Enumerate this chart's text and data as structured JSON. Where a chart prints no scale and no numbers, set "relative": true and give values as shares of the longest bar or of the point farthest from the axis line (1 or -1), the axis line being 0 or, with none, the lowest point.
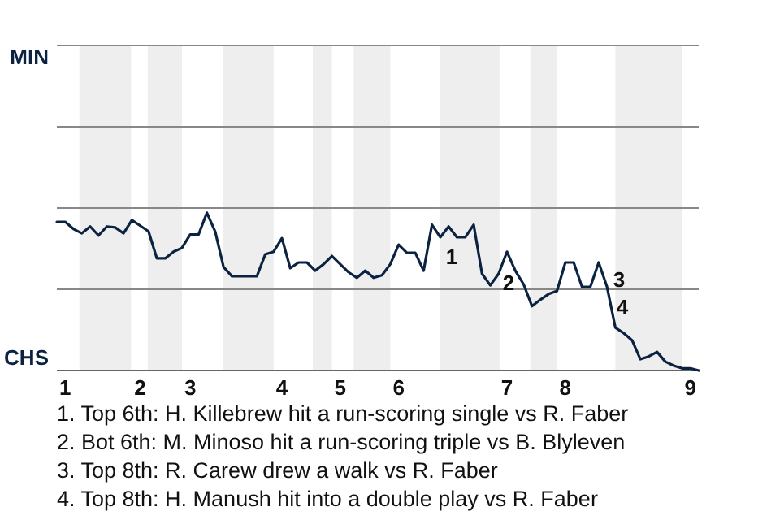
{
  "chart_data": {
    "type": "line",
    "relative": true,
    "marker": "none",
    "line_style": "solid",
    "ref_lines": [
      {
        "axis": "y",
        "value": 0.515,
        "label": null,
        "color": "#888888"
      },
      {
        "axis": "y",
        "value": 1.03,
        "label": null,
        "color": "#888888"
      },
      {
        "axis": "y",
        "value": 1.545,
        "label": null,
        "color": "#888888"
      },
      {
        "axis": "y",
        "value": 2.06,
        "label": null,
        "color": "#888888"
      }
    ],
    "categories": [
      null,
      "1",
      null,
      null,
      null,
      null,
      null,
      null,
      null,
      null,
      "2",
      null,
      null,
      null,
      null,
      null,
      "3",
      null,
      null,
      null,
      null,
      null,
      null,
      null,
      null,
      null,
      null,
      "4",
      null,
      null,
      null,
      null,
      null,
      null,
      "5",
      null,
      null,
      null,
      null,
      null,
      null,
      "6",
      null,
      null,
      null,
      null,
      null,
      null,
      null,
      null,
      null,
      null,
      null,
      null,
      "7",
      null,
      null,
      null,
      null,
      null,
      null,
      "8",
      null,
      null,
      null,
      null,
      null,
      null,
      null,
      null,
      null,
      null,
      null,
      null,
      null,
      null,
      "9",
      null
    ],
    "series": [
      {
        "color": "#0b2341",
        "values": [
          0.942,
          0.942,
          0.897,
          0.87,
          0.913,
          0.856,
          0.913,
          0.907,
          0.87,
          0.953,
          0.918,
          0.882,
          0.711,
          0.711,
          0.753,
          0.777,
          0.862,
          0.862,
          1,
          0.88,
          0.656,
          0.598,
          0.598,
          0.598,
          0.598,
          0.736,
          0.753,
          0.839,
          0.649,
          0.685,
          0.685,
          0.633,
          0.674,
          0.726,
          0.674,
          0.623,
          0.588,
          0.633,
          0.588,
          0.604,
          0.674,
          0.798,
          0.746,
          0.746,
          0.633,
          0.924,
          0.845,
          0.913,
          0.845,
          0.845,
          0.924,
          0.614,
          0.54,
          0.614,
          0.753,
          0.633,
          0.546,
          0.408,
          0.449,
          0.485,
          0.505,
          0.685,
          0.685,
          0.53,
          0.53,
          0.685,
          0.53,
          0.272,
          0.237,
          0.192,
          0.072,
          0.089,
          0.118,
          0.056,
          0.031,
          0.014,
          0.014,
          0
        ]
      }
    ],
    "annotations": [
      "MIN",
      "CHS",
      "1",
      "2",
      "3",
      "4",
      "1. Top 6th: H. Killebrew hit a run-scoring single vs R. Faber",
      "2. Bot 6th: M. Minoso hit a run-scoring triple vs B. Blyleven",
      "3. Top 8th: R. Carew drew a walk vs R. Faber",
      "4. Top 8th: H. Manush hit into a double play vs R. Faber"
    ]
  }
}
